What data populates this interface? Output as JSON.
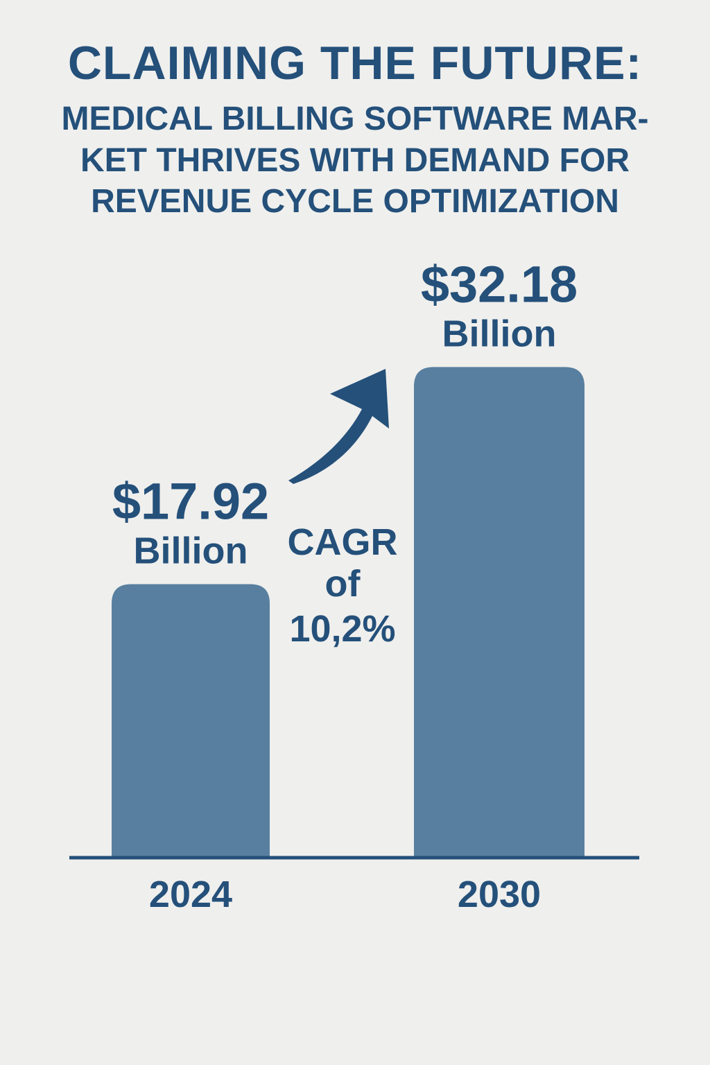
{
  "title": "CLAIMING THE FUTURE:",
  "subtitle_lines": [
    "MEDICAL BILLING SOFTWARE MAR-",
    "KET THRIVES WITH DEMAND FOR",
    "REVENUE CYCLE OPTIMIZATION"
  ],
  "colors": {
    "background": "#efefed",
    "text": "#24507a",
    "bar": "#587f9f",
    "axis": "#24507a"
  },
  "chart_data": {
    "type": "bar",
    "categories": [
      "2024",
      "2030"
    ],
    "values": [
      17.92,
      32.18
    ],
    "unit": "Billion",
    "value_labels": [
      "$17.92",
      "$32.18"
    ],
    "unit_labels": [
      "Billion",
      "Billion"
    ],
    "annotation": {
      "lines": [
        "CAGR",
        "of",
        "10,2%"
      ],
      "icon": "upward-arrow-icon"
    },
    "title": "CLAIMING THE FUTURE:",
    "xlabel": "",
    "ylabel": "",
    "grid": false,
    "legend": "none"
  }
}
